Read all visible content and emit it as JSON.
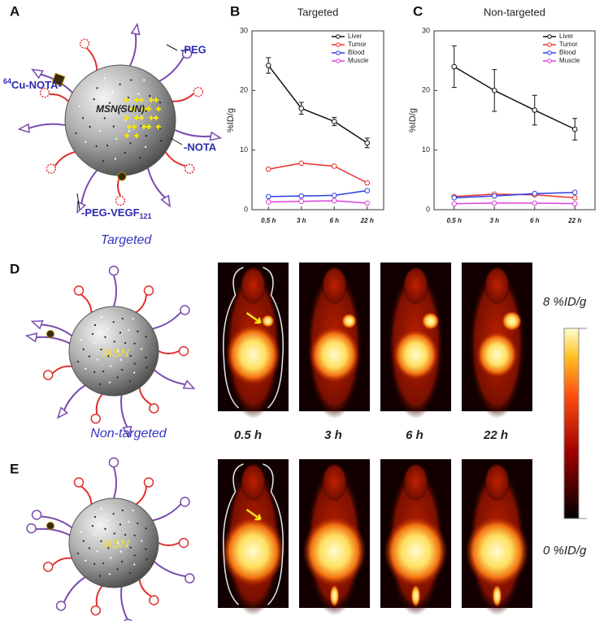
{
  "panels": [
    "A",
    "B",
    "C",
    "D",
    "E"
  ],
  "diagram_a": {
    "cu_sup": "64",
    "cu_label": "Cu-NOTA-",
    "peg": "-PEG",
    "nota": "-NOTA",
    "vegf_label": "-PEG-VEGF",
    "vegf_sub": "121",
    "core": "MSN(SUN)",
    "caption": "Targeted"
  },
  "diagram_d": {
    "core": "MSN",
    "caption": "Non-targeted"
  },
  "diagram_e": {
    "core": "MSN"
  },
  "timepoints": [
    "0.5 h",
    "3 h",
    "6 h",
    "22 h"
  ],
  "colorbar": {
    "max_label": "8 %ID/g",
    "min_label": "0 %ID/g"
  },
  "chart_data": [
    {
      "type": "line",
      "title": "Targeted",
      "y_label": "%ID/g",
      "categories": [
        "0.5 h",
        "3 h",
        "6 h",
        "22 h"
      ],
      "ylim": [
        0,
        30
      ],
      "yticks": [
        0,
        10,
        20,
        30
      ],
      "legend": "upper right",
      "series": [
        {
          "name": "Liver",
          "color": "#111111",
          "values": [
            24.2,
            17.0,
            14.8,
            11.2
          ],
          "errors": [
            1.3,
            1.0,
            0.7,
            0.8
          ]
        },
        {
          "name": "Tumor",
          "color": "#e8302a",
          "values": [
            6.8,
            7.8,
            7.3,
            4.5
          ]
        },
        {
          "name": "Blood",
          "color": "#2a3ee8",
          "values": [
            2.2,
            2.3,
            2.4,
            3.2
          ]
        },
        {
          "name": "Muscle",
          "color": "#e040e0",
          "values": [
            1.3,
            1.4,
            1.5,
            1.1
          ]
        }
      ]
    },
    {
      "type": "line",
      "title": "Non-targeted",
      "y_label": "%ID/g",
      "categories": [
        "0.5 h",
        "3 h",
        "6 h",
        "22 h"
      ],
      "ylim": [
        0,
        30
      ],
      "yticks": [
        0,
        10,
        20,
        30
      ],
      "legend": "upper right",
      "series": [
        {
          "name": "Liver",
          "color": "#111111",
          "values": [
            24.0,
            20.0,
            16.7,
            13.5
          ],
          "errors": [
            3.5,
            3.5,
            2.5,
            1.8
          ]
        },
        {
          "name": "Tumor",
          "color": "#e8302a",
          "values": [
            2.2,
            2.6,
            2.5,
            2.0
          ]
        },
        {
          "name": "Blood",
          "color": "#2a3ee8",
          "values": [
            2.0,
            2.3,
            2.7,
            2.9
          ]
        },
        {
          "name": "Muscle",
          "color": "#e040e0",
          "values": [
            1.0,
            1.1,
            1.1,
            1.0
          ]
        }
      ]
    }
  ]
}
